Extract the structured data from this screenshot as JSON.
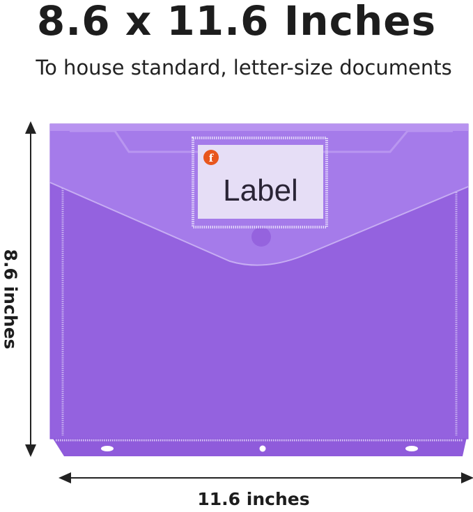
{
  "header": {
    "title": "8.6 x 11.6 Inches",
    "subtitle": "To house standard, letter-size documents"
  },
  "dimensions": {
    "height_label": "8.6 inches",
    "width_label": "11.6 inches"
  },
  "product": {
    "label_text": "Label",
    "colors": {
      "body": "#9462df",
      "flap": "#a57bea",
      "label_bg": "#e6def6",
      "logo": "#e8561e"
    }
  }
}
